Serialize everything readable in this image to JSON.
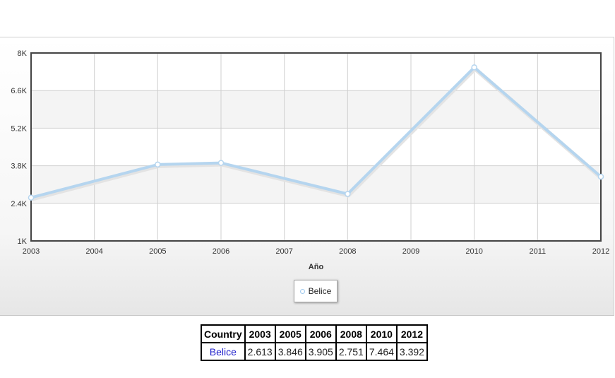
{
  "chart_data": {
    "type": "line",
    "x": [
      "2003",
      "2004",
      "2005",
      "2006",
      "2007",
      "2008",
      "2009",
      "2010",
      "2011",
      "2012"
    ],
    "x_tick_labels": [
      "2003",
      "2004",
      "2005",
      "2006",
      "2007",
      "2008",
      "2009",
      "2010",
      "2011",
      "2012"
    ],
    "xlabel": "Año",
    "ylabel": "",
    "title": "",
    "ylim": [
      1000,
      8000
    ],
    "y_ticks": [
      1000,
      2400,
      3800,
      5200,
      6600,
      8000
    ],
    "y_tick_labels": [
      "1K",
      "2.4K",
      "3.8K",
      "5.2K",
      "6.6K",
      "8K"
    ],
    "grid": true,
    "legend_position": "bottom-center",
    "series": [
      {
        "name": "Belice",
        "color": "#b5d5ef",
        "points": [
          {
            "x": "2003",
            "y": 2613
          },
          {
            "x": "2005",
            "y": 3846
          },
          {
            "x": "2006",
            "y": 3905
          },
          {
            "x": "2008",
            "y": 2751
          },
          {
            "x": "2010",
            "y": 7464
          },
          {
            "x": "2012",
            "y": 3392
          }
        ]
      }
    ]
  },
  "legend": {
    "label": "Belice"
  },
  "table": {
    "headers": [
      "Country",
      "2003",
      "2005",
      "2006",
      "2008",
      "2010",
      "2012"
    ],
    "rows": [
      [
        "Belice",
        "2.613",
        "3.846",
        "3.905",
        "2.751",
        "7.464",
        "3.392"
      ]
    ]
  }
}
